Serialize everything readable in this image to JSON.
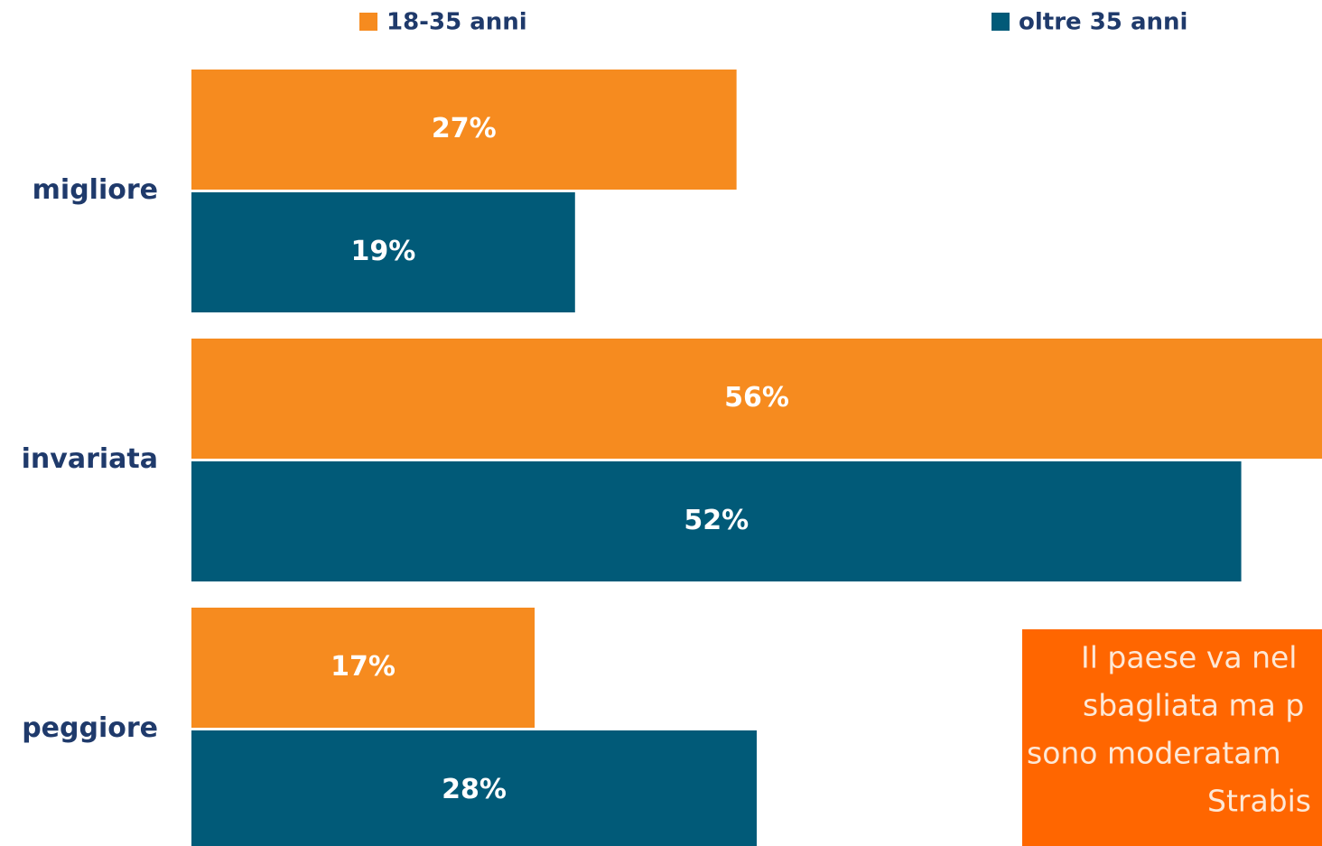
{
  "chart_data": {
    "type": "bar",
    "orientation": "horizontal",
    "categories": [
      "migliore",
      "invariata",
      "peggiore"
    ],
    "series": [
      {
        "name": "18-35 anni",
        "color": "#f68b1f",
        "values": [
          27,
          56,
          17
        ],
        "value_labels": [
          "27%",
          "56%",
          "17%"
        ]
      },
      {
        "name": "oltre 35 anni",
        "color": "#015a78",
        "values": [
          19,
          52,
          28
        ],
        "value_labels": [
          "19%",
          "52%",
          "28%"
        ]
      }
    ],
    "xlim": [
      0,
      56
    ],
    "annotation": {
      "color": "#ff6600",
      "lines": [
        "Il paese va nel",
        "sbagliata ma p",
        "sono moderatam",
        "Strabis"
      ]
    }
  }
}
